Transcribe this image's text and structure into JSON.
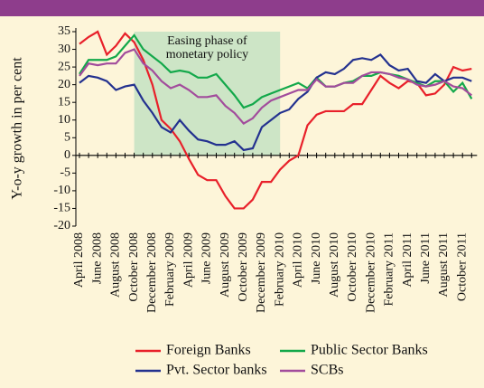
{
  "chart_data": {
    "type": "line",
    "y_label": "Y-o-y growth in per cent",
    "annotation": {
      "label": "Easing phase of monetary policy",
      "from": "October 2008",
      "to": "February 2010",
      "color": "#cde5c6"
    },
    "categories": [
      "April 2008",
      null,
      "June 2008",
      null,
      "August 2008",
      null,
      "October 2008",
      null,
      "December 2008",
      null,
      "February 2009",
      null,
      "April 2009",
      null,
      "June 2009",
      null,
      "August 2009",
      null,
      "October 2009",
      null,
      "December 2009",
      null,
      "February 2010",
      null,
      "April 2010",
      null,
      "June 2010",
      null,
      "August 2010",
      null,
      "October 2010",
      null,
      "December 2010",
      null,
      "February 2011",
      null,
      "April 2011",
      null,
      "June 2011",
      null,
      "August 2011",
      null,
      "October 2011",
      null
    ],
    "series": [
      {
        "name": "Foreign Banks",
        "color": "#e8202a",
        "values": [
          31.5,
          33.5,
          35,
          28.5,
          31,
          34.5,
          32,
          27,
          20,
          10,
          7.5,
          4,
          -1,
          -5.5,
          -7,
          -7,
          -11.5,
          -15,
          -15,
          -12.5,
          -7.5,
          -7.5,
          -4,
          -1.5,
          0,
          8.5,
          11.5,
          12.5,
          12.5,
          12.5,
          14.5,
          14.5,
          18.5,
          22.5,
          20.5,
          19,
          21,
          20.5,
          17,
          17.5,
          20,
          25,
          24,
          24.5
        ]
      },
      {
        "name": "Public Sector Banks",
        "color": "#13a84a",
        "values": [
          23,
          27,
          27,
          27,
          28,
          31,
          34,
          30,
          28,
          26,
          23.5,
          24,
          23.5,
          22,
          22,
          23,
          20,
          17,
          13.5,
          14.5,
          16.5,
          17.5,
          18.5,
          19.5,
          20.5,
          19,
          22,
          19.5,
          19.5,
          20.5,
          21,
          22.5,
          22.5,
          23.5,
          23,
          22.5,
          21.5,
          20.5,
          19.5,
          21,
          21,
          18,
          20.5,
          16
        ]
      },
      {
        "name": "Pvt. Sector banks",
        "color": "#23318f",
        "values": [
          20.5,
          22.5,
          22,
          21,
          18.5,
          19.5,
          20,
          15.5,
          12,
          8,
          6.5,
          10,
          7,
          4.5,
          4,
          3,
          3,
          4,
          1.5,
          2,
          8,
          10,
          12,
          13,
          16,
          18,
          22,
          23.5,
          23,
          24.5,
          27,
          27.5,
          27,
          28.5,
          25.5,
          24,
          24.5,
          21,
          20.5,
          23,
          21,
          22,
          22,
          21
        ]
      },
      {
        "name": "SCBs",
        "color": "#a24c9c",
        "values": [
          22.5,
          26,
          25.5,
          26,
          26,
          29,
          30,
          26,
          24,
          21,
          19,
          20,
          18.5,
          16.5,
          16.5,
          17,
          14,
          12,
          9,
          10.5,
          13.5,
          15.5,
          16.5,
          17.5,
          18.5,
          18.5,
          21.5,
          19.5,
          19.5,
          20.5,
          20.5,
          22.5,
          23.5,
          23.5,
          23,
          22,
          21.5,
          20,
          19.5,
          20,
          21,
          19.5,
          19,
          17
        ]
      }
    ],
    "ylim": [
      -20,
      35
    ],
    "yticks": [
      -20,
      -15,
      -10,
      -5,
      0,
      5,
      10,
      15,
      20,
      25,
      30,
      35
    ]
  }
}
